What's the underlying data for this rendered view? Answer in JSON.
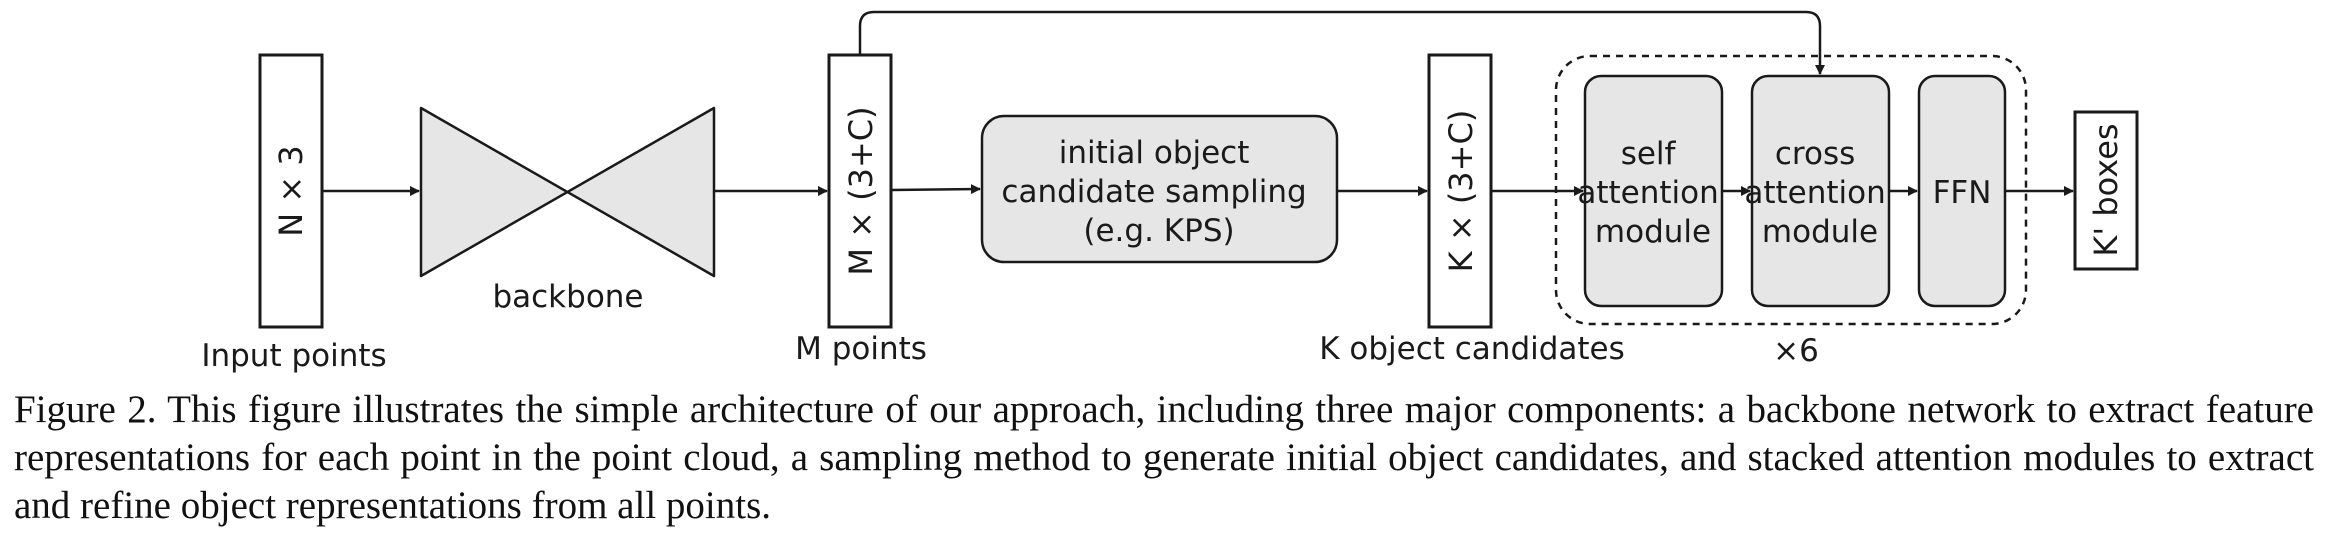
{
  "diagram": {
    "input_box_label": "N × 3",
    "input_caption": "Input points",
    "backbone_label": "backbone",
    "m_box_label": "M × (3+C)",
    "m_caption": "M points",
    "sampling_lines": [
      "initial object",
      "candidate sampling",
      "(e.g. KPS)"
    ],
    "k_box_label": "K × (3+C)",
    "k_caption": "K object candidates",
    "self_attention_lines": [
      "self",
      "attention",
      "module"
    ],
    "cross_attention_lines": [
      "cross",
      "attention",
      "module"
    ],
    "ffn_label": "FFN",
    "repeat_label": "×6",
    "output_box_label": "K' boxes"
  },
  "caption": "Figure 2. This figure illustrates the simple architecture of our approach, including three major components: a backbone network to extract feature representations for each point in the point cloud, a sampling method to generate initial object candidates, and stacked attention modules to extract and refine object representations from all points.",
  "colors": {
    "module_fill": "#e6e6e6",
    "stroke": "#1a1a1a"
  }
}
